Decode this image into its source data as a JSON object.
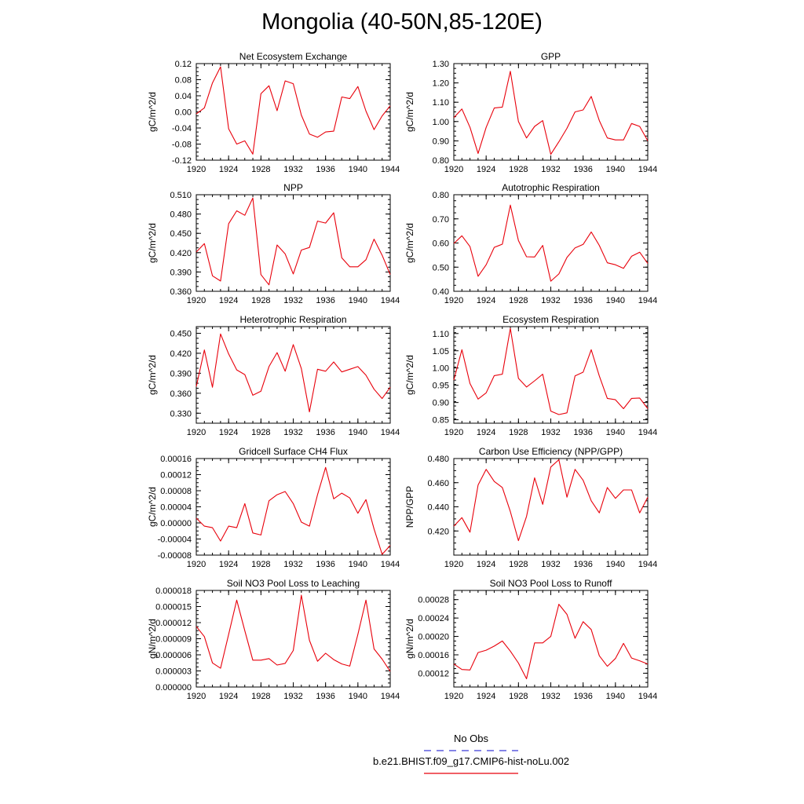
{
  "figure": {
    "title": "Mongolia (40-50N,85-120E)",
    "colors": {
      "model_line": "#e8000b",
      "obs_line": "#3b3bd6",
      "axes": "#000000"
    }
  },
  "legend": {
    "entries": [
      {
        "label": "No Obs",
        "color": "#3b3bd6",
        "style": "dashed"
      },
      {
        "label": "b.e21.BHIST.f09_g17.CMIP6-hist-noLu.002",
        "color": "#e8000b",
        "style": "solid"
      }
    ]
  },
  "chart_data": [
    {
      "type": "line",
      "title": "Net Ecosystem Exchange",
      "ylabel": "gC/m^2/d",
      "xlabel": "",
      "xlim": [
        1920,
        1944
      ],
      "ylim": [
        -0.12,
        0.12
      ],
      "xticks": [
        "1920",
        "1924",
        "1928",
        "1932",
        "1936",
        "1940",
        "1944"
      ],
      "yticks": [
        "-0.12",
        "-0.08",
        "-0.04",
        "0.00",
        "0.04",
        "0.08",
        "0.12"
      ],
      "x": [
        1920,
        1921,
        1922,
        1923,
        1924,
        1925,
        1926,
        1927,
        1928,
        1929,
        1930,
        1931,
        1932,
        1933,
        1934,
        1935,
        1936,
        1937,
        1938,
        1939,
        1940,
        1941,
        1942,
        1943,
        1944
      ],
      "series": [
        {
          "values": [
            -0.005,
            0.01,
            0.072,
            0.112,
            -0.042,
            -0.08,
            -0.072,
            -0.105,
            0.045,
            0.065,
            0.003,
            0.077,
            0.07,
            -0.008,
            -0.055,
            -0.063,
            -0.05,
            -0.048,
            0.037,
            0.033,
            0.063,
            0.002,
            -0.044,
            -0.01,
            0.015
          ]
        }
      ]
    },
    {
      "type": "line",
      "title": "GPP",
      "ylabel": "gC/m^2/d",
      "xlabel": "",
      "xlim": [
        1920,
        1944
      ],
      "ylim": [
        0.8,
        1.3
      ],
      "xticks": [
        "1920",
        "1924",
        "1928",
        "1932",
        "1936",
        "1940",
        "1944"
      ],
      "yticks": [
        "0.80",
        "0.90",
        "1.00",
        "1.10",
        "1.20",
        "1.30"
      ],
      "x": [
        1920,
        1921,
        1922,
        1923,
        1924,
        1925,
        1926,
        1927,
        1928,
        1929,
        1930,
        1931,
        1932,
        1933,
        1934,
        1935,
        1936,
        1937,
        1938,
        1939,
        1940,
        1941,
        1942,
        1943,
        1944
      ],
      "series": [
        {
          "values": [
            1.02,
            1.065,
            0.97,
            0.835,
            0.97,
            1.07,
            1.075,
            1.26,
            1.0,
            0.915,
            0.975,
            1.005,
            0.83,
            0.895,
            0.965,
            1.05,
            1.06,
            1.13,
            1.005,
            0.915,
            0.905,
            0.905,
            0.99,
            0.975,
            0.9
          ]
        }
      ]
    },
    {
      "type": "line",
      "title": "NPP",
      "ylabel": "gC/m^2/d",
      "xlabel": "",
      "xlim": [
        1920,
        1944
      ],
      "ylim": [
        0.36,
        0.51
      ],
      "xticks": [
        "1920",
        "1924",
        "1928",
        "1932",
        "1936",
        "1940",
        "1944"
      ],
      "yticks": [
        "0.360",
        "0.390",
        "0.420",
        "0.450",
        "0.480",
        "0.510"
      ],
      "x": [
        1920,
        1921,
        1922,
        1923,
        1924,
        1925,
        1926,
        1927,
        1928,
        1929,
        1930,
        1931,
        1932,
        1933,
        1934,
        1935,
        1936,
        1937,
        1938,
        1939,
        1940,
        1941,
        1942,
        1943,
        1944
      ],
      "series": [
        {
          "values": [
            0.421,
            0.434,
            0.384,
            0.376,
            0.465,
            0.485,
            0.478,
            0.505,
            0.386,
            0.37,
            0.432,
            0.418,
            0.387,
            0.424,
            0.428,
            0.469,
            0.466,
            0.482,
            0.412,
            0.398,
            0.398,
            0.409,
            0.441,
            0.416,
            0.386
          ]
        }
      ]
    },
    {
      "type": "line",
      "title": "Autotrophic Respiration",
      "ylabel": "gC/m^2/d",
      "xlabel": "",
      "xlim": [
        1920,
        1944
      ],
      "ylim": [
        0.4,
        0.8
      ],
      "xticks": [
        "1920",
        "1924",
        "1928",
        "1932",
        "1936",
        "1940",
        "1944"
      ],
      "yticks": [
        "0.40",
        "0.50",
        "0.60",
        "0.70",
        "0.80"
      ],
      "x": [
        1920,
        1921,
        1922,
        1923,
        1924,
        1925,
        1926,
        1927,
        1928,
        1929,
        1930,
        1931,
        1932,
        1933,
        1934,
        1935,
        1936,
        1937,
        1938,
        1939,
        1940,
        1941,
        1942,
        1943,
        1944
      ],
      "series": [
        {
          "values": [
            0.598,
            0.63,
            0.585,
            0.462,
            0.51,
            0.582,
            0.595,
            0.757,
            0.61,
            0.543,
            0.542,
            0.59,
            0.442,
            0.472,
            0.54,
            0.58,
            0.594,
            0.646,
            0.59,
            0.518,
            0.51,
            0.495,
            0.545,
            0.562,
            0.515
          ]
        }
      ]
    },
    {
      "type": "line",
      "title": "Heterotrophic Respiration",
      "ylabel": "gC/m^2/d",
      "xlabel": "",
      "xlim": [
        1920,
        1944
      ],
      "ylim": [
        0.315,
        0.46
      ],
      "xticks": [
        "1920",
        "1924",
        "1928",
        "1932",
        "1936",
        "1940",
        "1944"
      ],
      "yticks": [
        "0.330",
        "0.360",
        "0.390",
        "0.420",
        "0.450"
      ],
      "x": [
        1920,
        1921,
        1922,
        1923,
        1924,
        1925,
        1926,
        1927,
        1928,
        1929,
        1930,
        1931,
        1932,
        1933,
        1934,
        1935,
        1936,
        1937,
        1938,
        1939,
        1940,
        1941,
        1942,
        1943,
        1944
      ],
      "series": [
        {
          "values": [
            0.37,
            0.425,
            0.369,
            0.449,
            0.419,
            0.395,
            0.388,
            0.357,
            0.363,
            0.4,
            0.421,
            0.393,
            0.433,
            0.397,
            0.332,
            0.396,
            0.393,
            0.407,
            0.392,
            0.396,
            0.4,
            0.387,
            0.366,
            0.352,
            0.369
          ]
        }
      ]
    },
    {
      "type": "line",
      "title": "Ecosystem Respiration",
      "ylabel": "gC/m^2/d",
      "xlabel": "",
      "xlim": [
        1920,
        1944
      ],
      "ylim": [
        0.84,
        1.12
      ],
      "xticks": [
        "1920",
        "1924",
        "1928",
        "1932",
        "1936",
        "1940",
        "1944"
      ],
      "yticks": [
        "0.85",
        "0.90",
        "0.95",
        "1.00",
        "1.05",
        "1.10"
      ],
      "x": [
        1920,
        1921,
        1922,
        1923,
        1924,
        1925,
        1926,
        1927,
        1928,
        1929,
        1930,
        1931,
        1932,
        1933,
        1934,
        1935,
        1936,
        1937,
        1938,
        1939,
        1940,
        1941,
        1942,
        1943,
        1944
      ],
      "series": [
        {
          "values": [
            0.965,
            1.053,
            0.955,
            0.91,
            0.928,
            0.978,
            0.982,
            1.115,
            0.97,
            0.945,
            0.963,
            0.982,
            0.875,
            0.865,
            0.87,
            0.977,
            0.988,
            1.053,
            0.977,
            0.912,
            0.908,
            0.882,
            0.912,
            0.913,
            0.882
          ]
        }
      ]
    },
    {
      "type": "line",
      "title": "Gridcell Surface CH4 Flux",
      "ylabel": "gC/m^2/d",
      "xlabel": "",
      "xlim": [
        1920,
        1944
      ],
      "ylim": [
        -8e-05,
        0.00016
      ],
      "xticks": [
        "1920",
        "1924",
        "1928",
        "1932",
        "1936",
        "1940",
        "1944"
      ],
      "yticks": [
        "-0.00008",
        "-0.00004",
        "0.00000",
        "0.00004",
        "0.00008",
        "0.00012",
        "0.00016"
      ],
      "x": [
        1920,
        1921,
        1922,
        1923,
        1924,
        1925,
        1926,
        1927,
        1928,
        1929,
        1930,
        1931,
        1932,
        1933,
        1934,
        1935,
        1936,
        1937,
        1938,
        1939,
        1940,
        1941,
        1942,
        1943,
        1944
      ],
      "series": [
        {
          "values": [
            1.2e-05,
            -8e-06,
            -1.2e-05,
            -4.5e-05,
            -8e-06,
            -1.2e-05,
            4.8e-05,
            -2.5e-05,
            -3e-05,
            5.5e-05,
            7e-05,
            7.8e-05,
            4.8e-05,
            2e-06,
            -8e-06,
            7e-05,
            0.000138,
            6e-05,
            7.4e-05,
            6.2e-05,
            2.4e-05,
            5.8e-05,
            -1.5e-05,
            -7.8e-05,
            -5.6e-05
          ]
        }
      ]
    },
    {
      "type": "line",
      "title": "Carbon Use Efficiency (NPP/GPP)",
      "ylabel": "NPP/GPP",
      "xlabel": "",
      "xlim": [
        1920,
        1944
      ],
      "ylim": [
        0.4,
        0.48
      ],
      "xticks": [
        "1920",
        "1924",
        "1928",
        "1932",
        "1936",
        "1940",
        "1944"
      ],
      "yticks": [
        "0.420",
        "0.440",
        "0.460",
        "0.480"
      ],
      "x": [
        1920,
        1921,
        1922,
        1923,
        1924,
        1925,
        1926,
        1927,
        1928,
        1929,
        1930,
        1931,
        1932,
        1933,
        1934,
        1935,
        1936,
        1937,
        1938,
        1939,
        1940,
        1941,
        1942,
        1943,
        1944
      ],
      "series": [
        {
          "values": [
            0.424,
            0.431,
            0.419,
            0.458,
            0.471,
            0.461,
            0.456,
            0.436,
            0.412,
            0.432,
            0.464,
            0.442,
            0.473,
            0.479,
            0.448,
            0.471,
            0.462,
            0.445,
            0.435,
            0.456,
            0.447,
            0.454,
            0.454,
            0.435,
            0.448
          ]
        }
      ]
    },
    {
      "type": "line",
      "title": "Soil NO3 Pool Loss to Leaching",
      "ylabel": "gN/m^2/d",
      "xlabel": "",
      "xlim": [
        1920,
        1944
      ],
      "ylim": [
        0.0,
        1.8e-05
      ],
      "xticks": [
        "1920",
        "1924",
        "1928",
        "1932",
        "1936",
        "1940",
        "1944"
      ],
      "yticks": [
        "0.000000",
        "0.000003",
        "0.000006",
        "0.000009",
        "0.000012",
        "0.000015",
        "0.000018"
      ],
      "x": [
        1920,
        1921,
        1922,
        1923,
        1924,
        1925,
        1926,
        1927,
        1928,
        1929,
        1930,
        1931,
        1932,
        1933,
        1934,
        1935,
        1936,
        1937,
        1938,
        1939,
        1940,
        1941,
        1942,
        1943,
        1944
      ],
      "series": [
        {
          "values": [
            1.13e-05,
            9.4e-06,
            4.5e-06,
            3.5e-06,
            9.8e-06,
            1.62e-05,
            1.05e-05,
            5e-06,
            5e-06,
            5.3e-06,
            4.1e-06,
            4.4e-06,
            6.8e-06,
            1.71e-05,
            8.7e-06,
            4.8e-06,
            6.3e-06,
            5.1e-06,
            4.3e-06,
            3.9e-06,
            9.8e-06,
            1.62e-05,
            7.1e-06,
            5.2e-06,
            2.9e-06
          ]
        }
      ]
    },
    {
      "type": "line",
      "title": "Soil NO3 Pool Loss to Runoff",
      "ylabel": "gN/m^2/d",
      "xlabel": "",
      "xlim": [
        1920,
        1944
      ],
      "ylim": [
        9e-05,
        0.0003
      ],
      "xticks": [
        "1920",
        "1924",
        "1928",
        "1932",
        "1936",
        "1940",
        "1944"
      ],
      "yticks": [
        "0.00012",
        "0.00016",
        "0.00020",
        "0.00024",
        "0.00028"
      ],
      "x": [
        1920,
        1921,
        1922,
        1923,
        1924,
        1925,
        1926,
        1927,
        1928,
        1929,
        1930,
        1931,
        1932,
        1933,
        1934,
        1935,
        1936,
        1937,
        1938,
        1939,
        1940,
        1941,
        1942,
        1943,
        1944
      ],
      "series": [
        {
          "values": [
            0.00014,
            0.000128,
            0.000127,
            0.000165,
            0.00017,
            0.000179,
            0.00019,
            0.000168,
            0.000142,
            0.000108,
            0.000186,
            0.000186,
            0.0002,
            0.00027,
            0.000248,
            0.000196,
            0.000232,
            0.000215,
            0.000158,
            0.000135,
            0.000152,
            0.000185,
            0.000153,
            0.000147,
            0.00014
          ]
        }
      ]
    }
  ]
}
